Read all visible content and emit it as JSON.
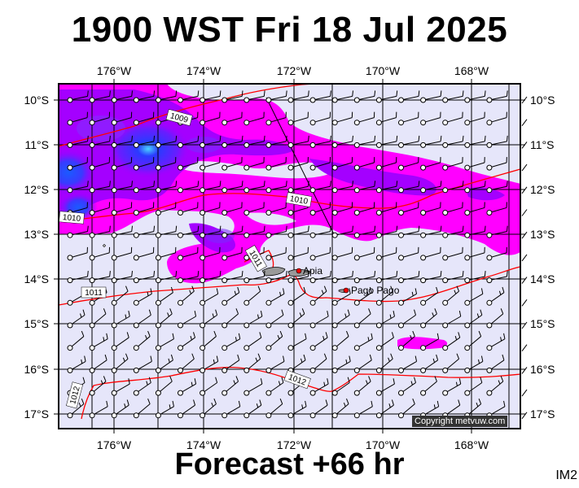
{
  "title": "1900 WST Fri 18 Jul 2025",
  "footer": "Forecast +66 hr",
  "corner_label": "IM2",
  "copyright": "Copyright metvuw.com",
  "map": {
    "lon_ticks": [
      "176°W",
      "174°W",
      "172°W",
      "170°W",
      "168°W"
    ],
    "lat_ticks": [
      "10°S",
      "11°S",
      "12°S",
      "13°S",
      "14°S",
      "15°S",
      "16°S",
      "17°S"
    ],
    "isobar_labels": [
      "1009",
      "1010",
      "1010",
      "1011",
      "1011",
      "1012",
      "1012"
    ],
    "places": [
      "Apia",
      "Pago Pago"
    ],
    "colors": {
      "background": "#e6e6fa",
      "magenta": "#ff00ff",
      "violet": "#aa00ff",
      "blue": "#3a3aff",
      "isobar": "#ff0000",
      "frame": "#000000"
    }
  }
}
